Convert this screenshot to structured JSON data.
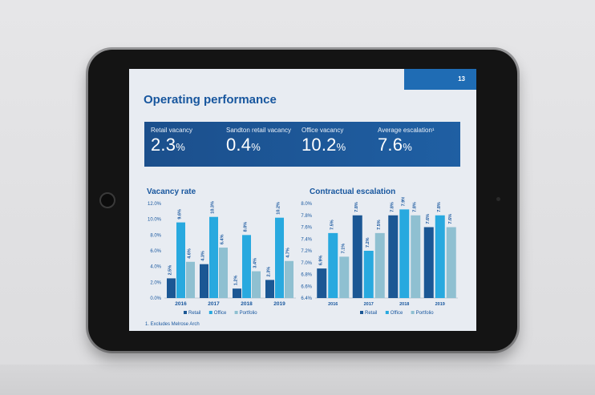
{
  "slide": {
    "page_number": "13",
    "title": "Operating performance",
    "footnote": "1. Excludes Melrose Arch"
  },
  "kpis": [
    {
      "label": "Retail vacancy",
      "value": "2.3",
      "unit": "%"
    },
    {
      "label": "Sandton retail vacancy",
      "value": "0.4",
      "unit": "%"
    },
    {
      "label": "Office vacancy",
      "value": "10.2",
      "unit": "%"
    },
    {
      "label": "Average escalation¹",
      "value": "7.6",
      "unit": "%"
    }
  ],
  "colors": {
    "retail": "#1b5794",
    "office": "#28a9df",
    "portfolio": "#8fc0d1",
    "accent": "#1f6cb4"
  },
  "chart_data": [
    {
      "type": "bar",
      "title": "Vacancy rate",
      "categories": [
        "2016",
        "2017",
        "2018",
        "2019"
      ],
      "series": [
        {
          "name": "Retail",
          "values": [
            2.5,
            4.3,
            1.2,
            2.3
          ],
          "labels": [
            "2.5%",
            "4.3%",
            "1.2%",
            "2.3%"
          ]
        },
        {
          "name": "Office",
          "values": [
            9.6,
            10.3,
            8.0,
            10.2
          ],
          "labels": [
            "9.6%",
            "10.3%",
            "8.0%",
            "10.2%"
          ]
        },
        {
          "name": "Portfolio",
          "values": [
            4.6,
            6.4,
            3.4,
            4.7
          ],
          "labels": [
            "4.6%",
            "6.4%",
            "3.4%",
            "4.7%"
          ]
        }
      ],
      "ylim": [
        0,
        12
      ],
      "yticks": [
        "0.0%",
        "2.0%",
        "4.0%",
        "6.0%",
        "8.0%",
        "10.0%",
        "12.0%"
      ],
      "legend": "bottom"
    },
    {
      "type": "bar",
      "title": "Contractual escalation",
      "categories": [
        "2016",
        "2017",
        "2018",
        "2019"
      ],
      "series": [
        {
          "name": "Retail",
          "values": [
            6.9,
            7.8,
            7.8,
            7.6
          ],
          "labels": [
            "6.9%",
            "7.8%",
            "7.8%",
            "7.6%"
          ]
        },
        {
          "name": "Office",
          "values": [
            7.5,
            7.2,
            7.9,
            7.8
          ],
          "labels": [
            "7.5%",
            "7.2%",
            "7.9%",
            "7.8%"
          ]
        },
        {
          "name": "Portfolio",
          "values": [
            7.1,
            7.5,
            7.8,
            7.6
          ],
          "labels": [
            "7.1%",
            "7.5%",
            "7.8%",
            "7.6%"
          ]
        }
      ],
      "ylim": [
        6.4,
        8.0
      ],
      "yticks": [
        "6.4%",
        "6.6%",
        "6.8%",
        "7.0%",
        "7.2%",
        "7.4%",
        "7.6%",
        "7.8%",
        "8.0%"
      ],
      "legend": "bottom"
    }
  ]
}
